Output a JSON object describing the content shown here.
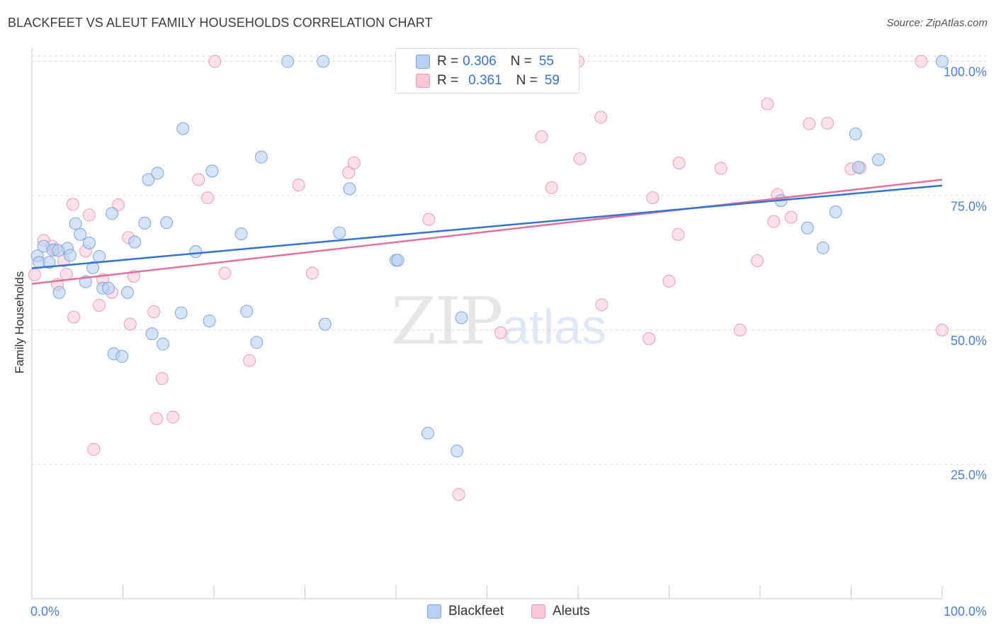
{
  "header": {
    "title": "BLACKFEET VS ALEUT FAMILY HOUSEHOLDS CORRELATION CHART",
    "source": "Source: ZipAtlas.com"
  },
  "watermark": {
    "zip": "ZIP",
    "atlas": "atlas"
  },
  "legend": {
    "items": [
      {
        "r_label": "R =",
        "r_value": "0.306",
        "n_label": "N =",
        "n_value": "55"
      },
      {
        "r_label": "R =",
        "r_value": "0.361",
        "n_label": "N =",
        "n_value": "59"
      }
    ]
  },
  "bottom_legend": {
    "series1": "Blackfeet",
    "series2": "Aleuts"
  },
  "colors": {
    "blue_fill": "#b8d1f2",
    "blue_stroke": "#7ea6dd",
    "blue_line": "#3474d1",
    "pink_fill": "#f8c8d8",
    "pink_stroke": "#ec9bb7",
    "pink_line": "#e2709a",
    "tick_label": "#4a7fd0",
    "grid": "#d8d8d8"
  },
  "chart_data": {
    "type": "scatter",
    "title": "BLACKFEET VS ALEUT FAMILY HOUSEHOLDS CORRELATION CHART",
    "xlabel": "",
    "ylabel": "Family Households",
    "xlim": [
      0,
      100
    ],
    "ylim": [
      0,
      102.2
    ],
    "x_tick_labels": [
      "0.0%",
      "100.0%"
    ],
    "y_ticks": [
      25,
      50,
      75,
      100
    ],
    "y_tick_labels": [
      "25.0%",
      "50.0%",
      "75.0%",
      "100.0%"
    ],
    "grid": true,
    "series": [
      {
        "name": "Blackfeet",
        "R": 0.306,
        "N": 55,
        "trend": {
          "x": [
            0,
            100
          ],
          "y": [
            61.5,
            76.9
          ]
        },
        "points": [
          [
            0.6,
            63.8
          ],
          [
            0.8,
            62.6
          ],
          [
            1.3,
            65.6
          ],
          [
            1.9,
            62.6
          ],
          [
            2.3,
            64.9
          ],
          [
            3.0,
            57.0
          ],
          [
            3.9,
            65.2
          ],
          [
            4.2,
            63.9
          ],
          [
            4.8,
            69.8
          ],
          [
            5.3,
            67.8
          ],
          [
            5.9,
            59.0
          ],
          [
            6.3,
            66.2
          ],
          [
            6.7,
            61.6
          ],
          [
            7.4,
            63.7
          ],
          [
            7.8,
            57.8
          ],
          [
            8.4,
            57.8
          ],
          [
            8.8,
            71.7
          ],
          [
            9.0,
            45.6
          ],
          [
            9.9,
            45.1
          ],
          [
            10.5,
            57.0
          ],
          [
            11.3,
            66.4
          ],
          [
            12.4,
            69.9
          ],
          [
            12.8,
            78.0
          ],
          [
            13.2,
            49.3
          ],
          [
            13.8,
            79.2
          ],
          [
            14.4,
            47.4
          ],
          [
            14.8,
            70.0
          ],
          [
            16.4,
            53.2
          ],
          [
            16.6,
            87.5
          ],
          [
            18.0,
            64.6
          ],
          [
            19.5,
            51.7
          ],
          [
            19.8,
            79.6
          ],
          [
            23.0,
            67.9
          ],
          [
            23.6,
            53.5
          ],
          [
            24.7,
            47.7
          ],
          [
            25.2,
            82.2
          ],
          [
            28.1,
            100.0
          ],
          [
            32.0,
            100.0
          ],
          [
            32.2,
            51.1
          ],
          [
            33.8,
            68.1
          ],
          [
            34.9,
            76.3
          ],
          [
            40.0,
            63.0
          ],
          [
            40.2,
            63.0
          ],
          [
            43.5,
            30.8
          ],
          [
            46.7,
            27.5
          ],
          [
            47.2,
            52.3
          ],
          [
            82.3,
            74.1
          ],
          [
            85.2,
            69.0
          ],
          [
            86.9,
            65.3
          ],
          [
            88.3,
            72.0
          ],
          [
            90.5,
            86.5
          ],
          [
            90.8,
            80.3
          ],
          [
            93.0,
            81.7
          ],
          [
            100.0,
            100.0
          ],
          [
            2.9,
            64.8
          ]
        ]
      },
      {
        "name": "Aleuts",
        "R": 0.361,
        "N": 59,
        "trend": {
          "x": [
            0,
            100
          ],
          "y": [
            58.6,
            78.0
          ]
        },
        "points": [
          [
            0.3,
            60.3
          ],
          [
            1.3,
            66.7
          ],
          [
            2.2,
            65.6
          ],
          [
            2.6,
            65.0
          ],
          [
            2.8,
            58.5
          ],
          [
            3.5,
            62.9
          ],
          [
            3.8,
            60.4
          ],
          [
            4.6,
            52.4
          ],
          [
            4.5,
            73.4
          ],
          [
            5.9,
            64.7
          ],
          [
            6.3,
            71.4
          ],
          [
            6.8,
            27.8
          ],
          [
            7.4,
            54.6
          ],
          [
            7.8,
            59.4
          ],
          [
            8.8,
            57.0
          ],
          [
            9.5,
            73.3
          ],
          [
            10.6,
            67.2
          ],
          [
            10.8,
            51.1
          ],
          [
            11.2,
            60.0
          ],
          [
            13.4,
            53.4
          ],
          [
            13.7,
            33.5
          ],
          [
            14.3,
            41.0
          ],
          [
            15.5,
            33.8
          ],
          [
            18.3,
            78.0
          ],
          [
            19.3,
            74.6
          ],
          [
            20.1,
            100.0
          ],
          [
            21.2,
            60.6
          ],
          [
            23.9,
            44.3
          ],
          [
            29.3,
            77.0
          ],
          [
            30.8,
            60.6
          ],
          [
            34.8,
            79.3
          ],
          [
            35.4,
            81.1
          ],
          [
            43.6,
            70.6
          ],
          [
            46.9,
            19.4
          ],
          [
            51.5,
            49.5
          ],
          [
            56.0,
            86.0
          ],
          [
            57.1,
            76.5
          ],
          [
            60.0,
            100.0
          ],
          [
            60.2,
            81.9
          ],
          [
            62.5,
            89.6
          ],
          [
            62.6,
            54.7
          ],
          [
            67.8,
            48.4
          ],
          [
            68.2,
            74.6
          ],
          [
            70.0,
            59.1
          ],
          [
            71.0,
            67.8
          ],
          [
            71.1,
            81.1
          ],
          [
            75.7,
            80.1
          ],
          [
            77.8,
            50.0
          ],
          [
            79.7,
            62.9
          ],
          [
            80.8,
            92.1
          ],
          [
            81.5,
            70.2
          ],
          [
            81.9,
            75.2
          ],
          [
            83.4,
            71.0
          ],
          [
            85.4,
            88.4
          ],
          [
            87.4,
            88.5
          ],
          [
            90.0,
            80.0
          ],
          [
            91.0,
            80.2
          ],
          [
            97.7,
            100.0
          ],
          [
            100.0,
            50.0
          ]
        ]
      }
    ]
  }
}
